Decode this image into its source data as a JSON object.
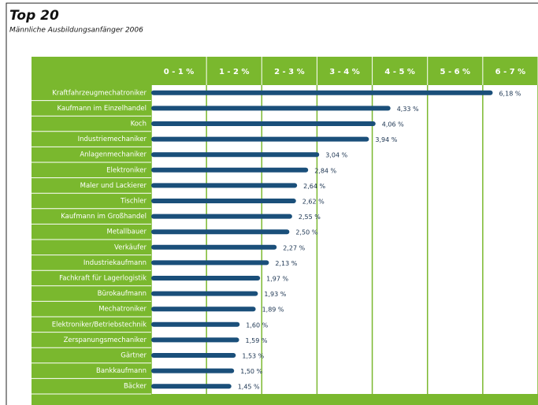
{
  "chart_data": {
    "type": "bar",
    "orientation": "horizontal",
    "title": "Top 20",
    "subtitle": "Männliche Ausbildungsanfänger 2006",
    "column_headers": [
      "0 - 1 %",
      "1 - 2 %",
      "2 - 3 %",
      "3 - 4 %",
      "4 - 5 %",
      "5 - 6 %",
      "6 - 7 %"
    ],
    "categories": [
      "Kraftfahrzeugmechatroniker",
      "Kaufmann im Einzelhandel",
      "Koch",
      "Industriemechaniker",
      "Anlagenmechaniker",
      "Elektroniker",
      "Maler und Lackierer",
      "Tischler",
      "Kaufmann im Großhandel",
      "Metallbauer",
      "Verkäufer",
      "Industriekaufmann",
      "Fachkraft für Lagerlogistik",
      "Bürokaufmann",
      "Mechatroniker",
      "Elektroniker/Betriebstechnik",
      "Zerspanungsmechaniker",
      "Gärtner",
      "Bankkaufmann",
      "Bäcker"
    ],
    "values": [
      6.18,
      4.33,
      4.06,
      3.94,
      3.04,
      2.84,
      2.64,
      2.62,
      2.55,
      2.5,
      2.27,
      2.13,
      1.97,
      1.93,
      1.89,
      1.6,
      1.59,
      1.53,
      1.5,
      1.45
    ],
    "value_labels": [
      "6,18 %",
      "4,33 %",
      "4,06 %",
      "3,94 %",
      "3,04 %",
      "2,84 %",
      "2,64 %",
      "2,62 %",
      "2,55 %",
      "2,50 %",
      "2,27 %",
      "2,13 %",
      "1,97 %",
      "1,93 %",
      "1,89 %",
      "1,60 %",
      "1,59 %",
      "1,53 %",
      "1,50 %",
      "1,45 %"
    ],
    "color": "#1a4f7a",
    "grid_color": "#7ab82e",
    "xlim": [
      0,
      7
    ],
    "xticks": [
      0,
      1,
      2,
      3,
      4,
      5,
      6,
      7
    ],
    "grid": true
  }
}
